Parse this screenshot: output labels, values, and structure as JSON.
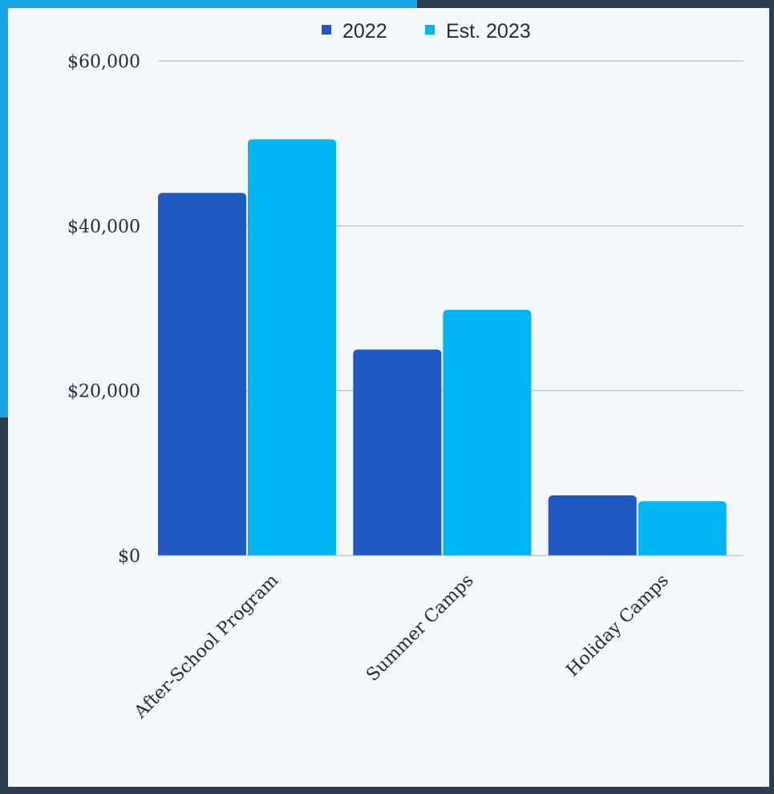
{
  "chart_data": {
    "type": "bar",
    "title": "",
    "xlabel": "",
    "ylabel": "",
    "categories": [
      "After-School Program",
      "Summer Camps",
      "Holiday Camps"
    ],
    "series": [
      {
        "name": "2022",
        "color": "#1f58c1",
        "values": [
          44000,
          25000,
          7300
        ]
      },
      {
        "name": "Est. 2023",
        "color": "#00b5f2",
        "values": [
          50500,
          29800,
          6600
        ]
      }
    ],
    "y_ticks": [
      0,
      20000,
      40000,
      60000
    ],
    "y_tick_labels": [
      "$0",
      "$20,000",
      "$40,000",
      "$60,000"
    ],
    "ylim": [
      0,
      60000
    ],
    "grid": true,
    "legend_position": "top-center"
  },
  "colors": {
    "background_frame": "#2b3d4f",
    "accent": "#1aa3e6",
    "panel": "#f4f8fb",
    "gridline": "#aab6c0",
    "axis_text": "#1f2d3a"
  }
}
